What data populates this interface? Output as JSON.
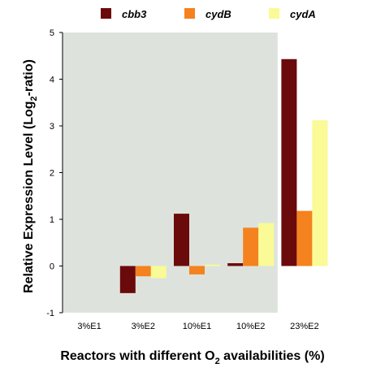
{
  "chart_data": {
    "type": "bar",
    "title": "",
    "xlabel": {
      "pre": "Reactors with different O",
      "sub": "2",
      "post": " availabilities (%)"
    },
    "ylabel": {
      "pre": "Relative Expression Level (Log",
      "sub": "2",
      "post": "-ratio)"
    },
    "categories": [
      "3%E1",
      "3%E2",
      "10%E1",
      "10%E2",
      "23%E2"
    ],
    "ylim": [
      -1,
      5
    ],
    "yticks": [
      "-1",
      "0",
      "1",
      "2",
      "3",
      "4",
      "5"
    ],
    "legend_position": "top",
    "shaded_region": {
      "from_category": "3%E1",
      "to_category": "10%E2",
      "color": "#dde3dc"
    },
    "series": [
      {
        "name": "cbb3",
        "color": "#6b0a0a",
        "values": [
          0,
          -0.58,
          1.12,
          0.06,
          4.43
        ]
      },
      {
        "name": "cydB",
        "color": "#f4821e",
        "values": [
          0,
          -0.22,
          -0.18,
          0.82,
          1.18
        ]
      },
      {
        "name": "cydA",
        "color": "#fafa96",
        "values": [
          0,
          -0.26,
          0.03,
          0.92,
          3.12
        ]
      }
    ]
  }
}
